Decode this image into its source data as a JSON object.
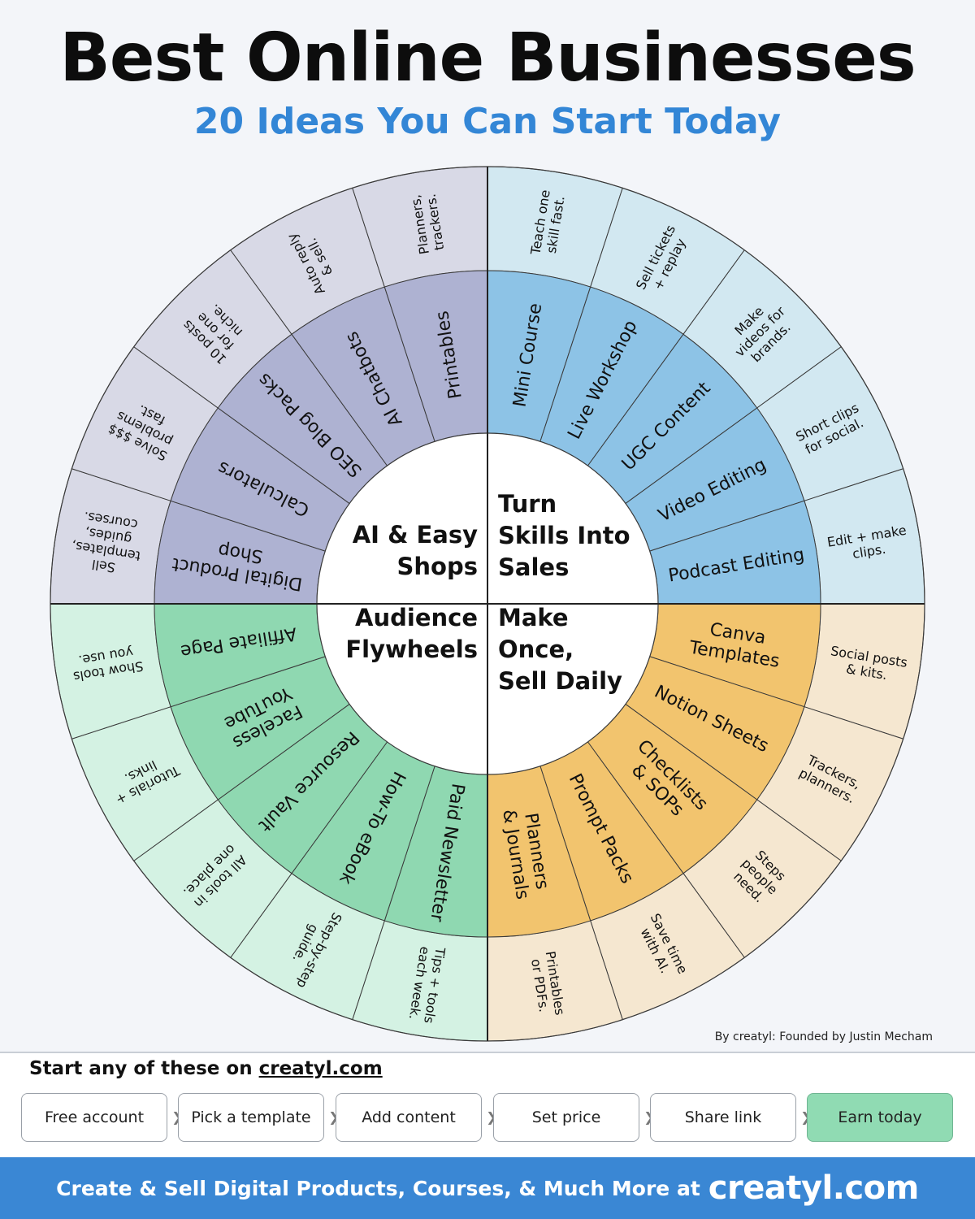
{
  "title": "Best Online Businesses",
  "subtitle": "20 Ideas You Can Start Today",
  "credit": "By creatyl: Founded by Justin Mecham",
  "quadrants": [
    {
      "id": "skills",
      "title": [
        "Turn",
        "Skills Into",
        "Sales"
      ],
      "inner_color": "#8dc3e6",
      "outer_color": "#d2e8f1",
      "items": [
        {
          "label": [
            "Mini Course"
          ],
          "desc": [
            "Teach one",
            "skill fast."
          ]
        },
        {
          "label": [
            "Live Workshop"
          ],
          "desc": [
            "Sell tickets",
            "+ replay"
          ]
        },
        {
          "label": [
            "UGC Content"
          ],
          "desc": [
            "Make",
            "videos for",
            "brands."
          ]
        },
        {
          "label": [
            "Video Editing"
          ],
          "desc": [
            "Short clips",
            "for social."
          ]
        },
        {
          "label": [
            "Podcast Editing"
          ],
          "desc": [
            "Edit + make",
            "clips."
          ]
        }
      ]
    },
    {
      "id": "make-once",
      "title": [
        "Make",
        "Once,",
        "Sell Daily"
      ],
      "inner_color": "#f2c46e",
      "outer_color": "#f5e7d0",
      "items": [
        {
          "label": [
            "Canva",
            "Templates"
          ],
          "desc": [
            "Social posts",
            "& kits."
          ]
        },
        {
          "label": [
            "Notion Sheets"
          ],
          "desc": [
            "Trackers,",
            "planners."
          ]
        },
        {
          "label": [
            "Checklists",
            "& SOPs"
          ],
          "desc": [
            "Steps",
            "people",
            "need."
          ]
        },
        {
          "label": [
            "Prompt Packs"
          ],
          "desc": [
            "Save time",
            "with AI."
          ]
        },
        {
          "label": [
            "Planners",
            "& Journals"
          ],
          "desc": [
            "Printables",
            "or PDFs."
          ]
        }
      ]
    },
    {
      "id": "audience",
      "title": [
        "Audience",
        "Flywheels"
      ],
      "inner_color": "#8fd8b1",
      "outer_color": "#d4f2e3",
      "items": [
        {
          "label": [
            "Paid Newsletter"
          ],
          "desc": [
            "Tips + tools",
            "each week."
          ]
        },
        {
          "label": [
            "How-To eBook"
          ],
          "desc": [
            "Step-by-step",
            "guide."
          ]
        },
        {
          "label": [
            "Resource Vault"
          ],
          "desc": [
            "All tools in",
            "one place."
          ]
        },
        {
          "label": [
            "Faceless",
            "YouTube"
          ],
          "desc": [
            "Tutorials +",
            "links."
          ]
        },
        {
          "label": [
            "Affiliate Page"
          ],
          "desc": [
            "Show tools",
            "you use."
          ]
        }
      ]
    },
    {
      "id": "ai-shops",
      "title": [
        "AI & Easy",
        "Shops"
      ],
      "inner_color": "#aeb2d2",
      "outer_color": "#d8d9e6",
      "items": [
        {
          "label": [
            "Digital Product",
            "Shop"
          ],
          "desc": [
            "Sell",
            "templates,",
            "guides,",
            "courses."
          ]
        },
        {
          "label": [
            "Calculators"
          ],
          "desc": [
            "Solve $$$",
            "problems",
            "fast."
          ]
        },
        {
          "label": [
            "SEO Blog Packs"
          ],
          "desc": [
            "10 posts",
            "for one",
            "niche."
          ]
        },
        {
          "label": [
            "AI Chatbots"
          ],
          "desc": [
            "Auto reply",
            "& sell."
          ]
        },
        {
          "label": [
            "Printables"
          ],
          "desc": [
            "Planners,",
            "trackers."
          ]
        }
      ]
    }
  ],
  "cta": {
    "prefix": "Start any of these on ",
    "link": "creatyl.com"
  },
  "steps": [
    "Free account",
    "Pick a template",
    "Add content",
    "Set price",
    "Share link",
    "Earn today"
  ],
  "footer": {
    "text": "Create & Sell Digital Products, Courses, & Much More at",
    "brand": "creatyl.com"
  }
}
